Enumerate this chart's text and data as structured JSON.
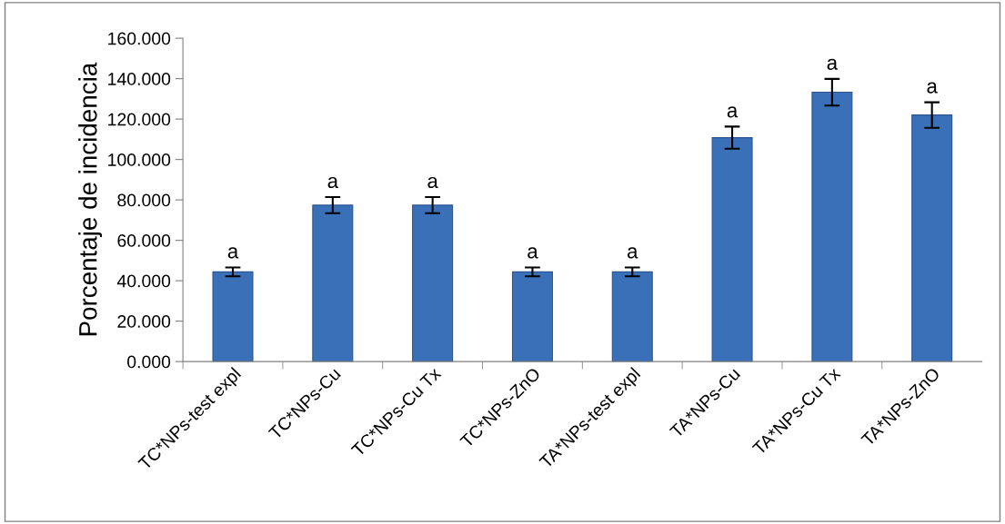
{
  "chart_data": {
    "type": "bar",
    "ylabel": "Porcentaje de incidencia",
    "categories": [
      "TC*NPs-test expl",
      "TC*NPs-Cu",
      "TC*NPs-Cu Tx",
      "TC*NPs-ZnO",
      "TA*NPs-test expl",
      "TA*NPs-Cu",
      "TA*NPs-Cu Tx",
      "TA*NPs-ZnO"
    ],
    "values": [
      44.4,
      77.4,
      77.4,
      44.4,
      44.4,
      110.8,
      133.3,
      122.0
    ],
    "errors": [
      2.2,
      4,
      4,
      2.2,
      2.2,
      5.5,
      6.6,
      6.3
    ],
    "value_labels": [
      "a",
      "a",
      "a",
      "a",
      "a",
      "a",
      "a",
      "a"
    ],
    "color": "#3a70b8",
    "ylim": [
      0,
      160
    ],
    "yticks": [
      {
        "value": 0,
        "label": "0.000"
      },
      {
        "value": 20,
        "label": "20.000"
      },
      {
        "value": 40,
        "label": "40.000"
      },
      {
        "value": 60,
        "label": "60.000"
      },
      {
        "value": 80,
        "label": "80.000"
      },
      {
        "value": 100,
        "label": "100.000"
      },
      {
        "value": 120,
        "label": "120.000"
      },
      {
        "value": 140,
        "label": "140.000"
      },
      {
        "value": 160,
        "label": "160.000"
      }
    ],
    "grid": false,
    "legend": false
  }
}
